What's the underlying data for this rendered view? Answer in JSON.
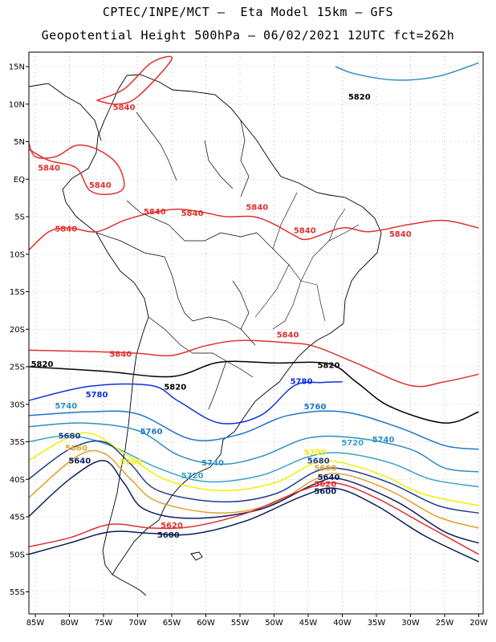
{
  "header": {
    "line1": "CPTEC/INPE/MCT –  Eta Model 15km – GFS",
    "line2": "Geopotential Height 500hPa – 06/02/2021 12UTC fct=262h"
  },
  "axes": {
    "lat_ticks": [
      {
        "v": 15,
        "label": "15N"
      },
      {
        "v": 10,
        "label": "10N"
      },
      {
        "v": 5,
        "label": "5N"
      },
      {
        "v": 0,
        "label": "EQ"
      },
      {
        "v": -5,
        "label": "5S"
      },
      {
        "v": -10,
        "label": "10S"
      },
      {
        "v": -15,
        "label": "15S"
      },
      {
        "v": -20,
        "label": "20S"
      },
      {
        "v": -25,
        "label": "25S"
      },
      {
        "v": -30,
        "label": "30S"
      },
      {
        "v": -35,
        "label": "35S"
      },
      {
        "v": -40,
        "label": "40S"
      },
      {
        "v": -45,
        "label": "45S"
      },
      {
        "v": -50,
        "label": "50S"
      },
      {
        "v": -55,
        "label": "55S"
      }
    ],
    "lon_ticks": [
      {
        "v": -85,
        "label": "85W"
      },
      {
        "v": -80,
        "label": "80W"
      },
      {
        "v": -75,
        "label": "75W"
      },
      {
        "v": -70,
        "label": "70W"
      },
      {
        "v": -65,
        "label": "65W"
      },
      {
        "v": -60,
        "label": "60W"
      },
      {
        "v": -55,
        "label": "55W"
      },
      {
        "v": -50,
        "label": "50W"
      },
      {
        "v": -45,
        "label": "45W"
      },
      {
        "v": -40,
        "label": "40W"
      },
      {
        "v": -35,
        "label": "35W"
      },
      {
        "v": -30,
        "label": "30W"
      },
      {
        "v": -25,
        "label": "25W"
      },
      {
        "v": -20,
        "label": "20W"
      }
    ]
  },
  "contours": [
    {
      "value": "5820",
      "color": "#000000",
      "points": [
        [
          -86,
          -25
        ],
        [
          -75,
          -25.6
        ],
        [
          -65,
          -26.3
        ],
        [
          -58,
          -24.4
        ],
        [
          -50,
          -24.5
        ],
        [
          -42,
          -24.6
        ],
        [
          -38,
          -27
        ],
        [
          -33,
          -30.3
        ],
        [
          -25,
          -32.5
        ],
        [
          -20,
          -31
        ]
      ],
      "labels": [
        {
          "text": "5820",
          "lon": -84,
          "lat": -24.6
        },
        {
          "text": "5820",
          "lon": -64.5,
          "lat": -27.7
        },
        {
          "text": "5820",
          "lon": -42,
          "lat": -24.8
        },
        {
          "text": "5820",
          "lon": -37.5,
          "lat": 11
        }
      ]
    },
    {
      "value": "5780",
      "color": "#1030e0",
      "points": [
        [
          -86,
          -29.5
        ],
        [
          -77,
          -27.6
        ],
        [
          -68,
          -27.5
        ],
        [
          -64,
          -29.6
        ],
        [
          -58,
          -32.5
        ],
        [
          -52,
          -31.5
        ],
        [
          -47,
          -27.5
        ],
        [
          -43,
          -27.1
        ],
        [
          -40,
          -27
        ]
      ],
      "labels": [
        {
          "text": "5780",
          "lon": -76,
          "lat": -28.7
        },
        {
          "text": "5780",
          "lon": -46,
          "lat": -26.9
        }
      ]
    },
    {
      "value": "5760",
      "color": "#1e73c8",
      "points": [
        [
          -86,
          -31.5
        ],
        [
          -77,
          -31
        ],
        [
          -70,
          -31.3
        ],
        [
          -62,
          -34.7
        ],
        [
          -55,
          -34
        ],
        [
          -48,
          -31.5
        ],
        [
          -40,
          -31
        ],
        [
          -32,
          -33
        ],
        [
          -25,
          -35.5
        ],
        [
          -20,
          -36
        ]
      ],
      "labels": [
        {
          "text": "5760",
          "lon": -68,
          "lat": -33.6
        },
        {
          "text": "5760",
          "lon": -44,
          "lat": -30.3
        }
      ]
    },
    {
      "value": "5740",
      "color": "#2f8ec2",
      "points": [
        [
          -86,
          -33
        ],
        [
          -78,
          -32.5
        ],
        [
          -70,
          -33.5
        ],
        [
          -64,
          -36.8
        ],
        [
          -58,
          -38
        ],
        [
          -52,
          -37
        ],
        [
          -45,
          -34.5
        ],
        [
          -38,
          -34.5
        ],
        [
          -30,
          -36
        ],
        [
          -25,
          -38.5
        ],
        [
          -20,
          -39
        ]
      ],
      "labels": [
        {
          "text": "5740",
          "lon": -80.5,
          "lat": -30.2
        },
        {
          "text": "5740",
          "lon": -59,
          "lat": -37.8
        },
        {
          "text": "5740",
          "lon": -34,
          "lat": -34.7
        }
      ]
    },
    {
      "value": "5720",
      "color": "#3aa2c8",
      "points": [
        [
          -86,
          -35
        ],
        [
          -80,
          -34.2
        ],
        [
          -74,
          -35.5
        ],
        [
          -67,
          -38.5
        ],
        [
          -60,
          -40.3
        ],
        [
          -52,
          -39.5
        ],
        [
          -45,
          -37
        ],
        [
          -40,
          -36.5
        ],
        [
          -33,
          -37.8
        ],
        [
          -27,
          -40
        ],
        [
          -20,
          -41
        ]
      ],
      "labels": [
        {
          "text": "5720",
          "lon": -62,
          "lat": -39.5
        },
        {
          "text": "5720",
          "lon": -38.5,
          "lat": -35.1
        }
      ]
    },
    {
      "value": "5700",
      "color": "#f0f000",
      "points": [
        [
          -86,
          -37.5
        ],
        [
          -78,
          -33.8
        ],
        [
          -72,
          -36.5
        ],
        [
          -66,
          -40
        ],
        [
          -58,
          -41.5
        ],
        [
          -50,
          -40.5
        ],
        [
          -44,
          -37.8
        ],
        [
          -40,
          -37.8
        ],
        [
          -34,
          -39.5
        ],
        [
          -28,
          -42
        ],
        [
          -20,
          -43.5
        ]
      ],
      "labels": [
        {
          "text": "5700",
          "lon": -71,
          "lat": -37.7
        },
        {
          "text": "5700",
          "lon": -44,
          "lat": -36.4
        }
      ]
    },
    {
      "value": "5680",
      "color": "#1f3f8a",
      "points": [
        [
          -86,
          -40
        ],
        [
          -80,
          -36
        ],
        [
          -75,
          -35
        ],
        [
          -71,
          -38
        ],
        [
          -67,
          -41.5
        ],
        [
          -58,
          -43
        ],
        [
          -50,
          -42
        ],
        [
          -44,
          -39
        ],
        [
          -40,
          -38.6
        ],
        [
          -33,
          -40.5
        ],
        [
          -26,
          -43.5
        ],
        [
          -20,
          -44.5
        ]
      ],
      "labels": [
        {
          "text": "5680",
          "lon": -80,
          "lat": -34.2
        },
        {
          "text": "5680",
          "lon": -43.5,
          "lat": -37.5
        }
      ]
    },
    {
      "value": "5660",
      "color": "#e0a030",
      "points": [
        [
          -86,
          -42.5
        ],
        [
          -79,
          -37
        ],
        [
          -75,
          -36.5
        ],
        [
          -71,
          -40
        ],
        [
          -67,
          -43
        ],
        [
          -58,
          -44.5
        ],
        [
          -50,
          -43.2
        ],
        [
          -44,
          -40
        ],
        [
          -40,
          -39.3
        ],
        [
          -33,
          -41.5
        ],
        [
          -26,
          -45
        ],
        [
          -20,
          -46.5
        ]
      ],
      "labels": [
        {
          "text": "5660",
          "lon": -79,
          "lat": -35.8
        },
        {
          "text": "5660",
          "lon": -42.5,
          "lat": -38.5
        }
      ]
    },
    {
      "value": "5640",
      "color": "#0a2060",
      "points": [
        [
          -86,
          -45
        ],
        [
          -80,
          -40
        ],
        [
          -75,
          -37.5
        ],
        [
          -72,
          -40.5
        ],
        [
          -69,
          -44
        ],
        [
          -62,
          -45.2
        ],
        [
          -52,
          -44
        ],
        [
          -44,
          -40.6
        ],
        [
          -40,
          -40
        ],
        [
          -32,
          -43
        ],
        [
          -25,
          -47
        ],
        [
          -20,
          -48.5
        ]
      ],
      "labels": [
        {
          "text": "5640",
          "lon": -78.5,
          "lat": -37.5
        },
        {
          "text": "5640",
          "lon": -42,
          "lat": -39.7
        }
      ]
    },
    {
      "value": "5620",
      "color": "#e03030",
      "points": [
        [
          -86,
          -49
        ],
        [
          -80,
          -47.8
        ],
        [
          -74,
          -46
        ],
        [
          -68,
          -46.5
        ],
        [
          -62,
          -46.3
        ],
        [
          -54,
          -44.5
        ],
        [
          -46,
          -41.5
        ],
        [
          -41,
          -40.5
        ],
        [
          -35,
          -42.5
        ],
        [
          -28,
          -46
        ],
        [
          -20,
          -50
        ]
      ],
      "labels": [
        {
          "text": "5620",
          "lon": -65,
          "lat": -46.1
        },
        {
          "text": "5620",
          "lon": -42.5,
          "lat": -40.6
        }
      ]
    },
    {
      "value": "5600",
      "color": "#0b1e55",
      "points": [
        [
          -86,
          -50
        ],
        [
          -80,
          -48.5
        ],
        [
          -74,
          -47
        ],
        [
          -68,
          -47.2
        ],
        [
          -62,
          -47.3
        ],
        [
          -54,
          -45.5
        ],
        [
          -46,
          -42.3
        ],
        [
          -41,
          -41.2
        ],
        [
          -35,
          -43.5
        ],
        [
          -28,
          -47.5
        ],
        [
          -20,
          -51
        ]
      ],
      "labels": [
        {
          "text": "5600",
          "lon": -65.5,
          "lat": -47.4
        },
        {
          "text": "5600",
          "lon": -42.5,
          "lat": -41.6
        }
      ]
    },
    {
      "value": "5840",
      "color": "#e03030",
      "points": [
        [
          -86,
          -22.8
        ],
        [
          -76,
          -23
        ],
        [
          -70,
          -23.2
        ],
        [
          -65,
          -23.5
        ],
        [
          -60,
          -22.2
        ],
        [
          -55,
          -21.5
        ],
        [
          -48,
          -21.8
        ],
        [
          -44,
          -22.3
        ],
        [
          -38,
          -24.5
        ],
        [
          -30,
          -27.5
        ],
        [
          -25,
          -27
        ],
        [
          -20,
          -26
        ]
      ],
      "labels": [
        {
          "text": "5840",
          "lon": -72.5,
          "lat": -23.3
        },
        {
          "text": "5840",
          "lon": -48,
          "lat": -20.7
        }
      ]
    },
    {
      "value": "5840",
      "color": "#e03030",
      "points": [
        [
          -86,
          -9.5
        ],
        [
          -83,
          -7
        ],
        [
          -80,
          -6.5
        ],
        [
          -76,
          -7
        ],
        [
          -72,
          -5.5
        ],
        [
          -68,
          -4.5
        ],
        [
          -64,
          -4
        ],
        [
          -60,
          -4.5
        ],
        [
          -57,
          -5
        ],
        [
          -53,
          -5
        ],
        [
          -50,
          -6
        ],
        [
          -47,
          -7.5
        ],
        [
          -45,
          -8
        ],
        [
          -40,
          -6.5
        ],
        [
          -36,
          -7
        ],
        [
          -30,
          -6
        ],
        [
          -25,
          -5.5
        ],
        [
          -20,
          -6.5
        ]
      ],
      "labels": [
        {
          "text": "5840",
          "lon": -80.5,
          "lat": -6.6
        },
        {
          "text": "5840",
          "lon": -67.5,
          "lat": -4.3
        },
        {
          "text": "5840",
          "lon": -62,
          "lat": -4.5
        },
        {
          "text": "5840",
          "lon": -52.5,
          "lat": -3.7
        },
        {
          "text": "5840",
          "lon": -45.5,
          "lat": -6.8
        },
        {
          "text": "5840",
          "lon": -31.5,
          "lat": -7.3
        }
      ]
    },
    {
      "value": "5840",
      "color": "#e03030",
      "points": [
        [
          -86,
          5
        ],
        [
          -85,
          3
        ],
        [
          -82,
          3
        ],
        [
          -79,
          4.5
        ],
        [
          -76,
          4
        ],
        [
          -73,
          2
        ],
        [
          -72,
          -1
        ],
        [
          -74,
          -2
        ],
        [
          -77,
          -1.5
        ],
        [
          -79,
          1.5
        ],
        [
          -83,
          2.5
        ],
        [
          -86,
          4
        ]
      ],
      "labels": [
        {
          "text": "5840",
          "lon": -83,
          "lat": 1.5
        },
        {
          "text": "5840",
          "lon": -75.5,
          "lat": -0.8
        }
      ]
    },
    {
      "value": "5840",
      "color": "#e03030",
      "points": [
        [
          -76,
          10.5
        ],
        [
          -72,
          12
        ],
        [
          -68,
          15.5
        ],
        [
          -65,
          16
        ],
        [
          -70,
          11
        ],
        [
          -73,
          10
        ],
        [
          -76,
          10.5
        ]
      ],
      "labels": [
        {
          "text": "5840",
          "lon": -72,
          "lat": 9.6
        }
      ]
    },
    {
      "value": "5820",
      "color": "#2f8ec2",
      "points": [
        [
          -41,
          15
        ],
        [
          -38,
          14
        ],
        [
          -32,
          13.2
        ],
        [
          -26,
          13.7
        ],
        [
          -20,
          15.5
        ]
      ],
      "labels": []
    }
  ]
}
